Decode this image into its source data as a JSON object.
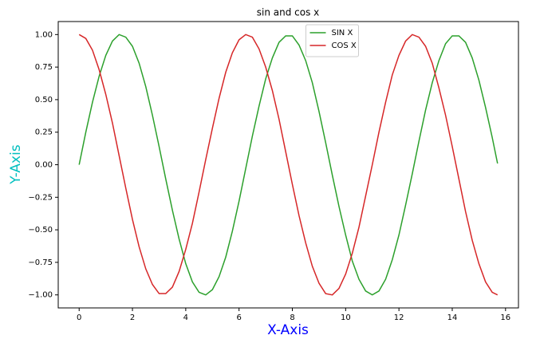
{
  "chart_data": {
    "type": "line",
    "title": "sin and cos x",
    "x_label": "X-Axis",
    "y_label": "Y-Axis",
    "x_label_color": "#0000ff",
    "y_label_color": "#00bfbf",
    "x": [
      0,
      0.25,
      0.5,
      0.75,
      1,
      1.25,
      1.5,
      1.75,
      2,
      2.25,
      2.5,
      2.75,
      3,
      3.25,
      3.5,
      3.75,
      4,
      4.25,
      4.5,
      4.75,
      5,
      5.25,
      5.5,
      5.75,
      6,
      6.25,
      6.5,
      6.75,
      7,
      7.25,
      7.5,
      7.75,
      8,
      8.25,
      8.5,
      8.75,
      9,
      9.25,
      9.5,
      9.75,
      10,
      10.25,
      10.5,
      10.75,
      11,
      11.25,
      11.5,
      11.75,
      12,
      12.25,
      12.5,
      12.75,
      13,
      13.25,
      13.5,
      13.75,
      14,
      14.25,
      14.5,
      14.75,
      15,
      15.25,
      15.5,
      15.7
    ],
    "series": [
      {
        "name": "SIN X",
        "color": "#2ca02c",
        "values": [
          0,
          0.25,
          0.48,
          0.68,
          0.84,
          0.95,
          1.0,
          0.98,
          0.91,
          0.78,
          0.6,
          0.38,
          0.14,
          -0.11,
          -0.35,
          -0.57,
          -0.76,
          -0.9,
          -0.98,
          -1.0,
          -0.96,
          -0.86,
          -0.71,
          -0.51,
          -0.28,
          -0.03,
          0.22,
          0.45,
          0.66,
          0.82,
          0.94,
          0.99,
          0.99,
          0.92,
          0.8,
          0.63,
          0.41,
          0.17,
          -0.08,
          -0.32,
          -0.54,
          -0.74,
          -0.88,
          -0.97,
          -1.0,
          -0.97,
          -0.88,
          -0.73,
          -0.54,
          -0.31,
          -0.07,
          0.18,
          0.42,
          0.63,
          0.8,
          0.93,
          0.99,
          0.99,
          0.94,
          0.82,
          0.65,
          0.44,
          0.21,
          0.01
        ]
      },
      {
        "name": "COS X",
        "color": "#d62728",
        "values": [
          1,
          0.97,
          0.88,
          0.73,
          0.54,
          0.32,
          0.07,
          -0.18,
          -0.42,
          -0.63,
          -0.8,
          -0.92,
          -0.99,
          -0.99,
          -0.94,
          -0.82,
          -0.65,
          -0.45,
          -0.21,
          0.04,
          0.28,
          0.51,
          0.71,
          0.86,
          0.96,
          1.0,
          0.98,
          0.89,
          0.75,
          0.57,
          0.35,
          0.1,
          -0.15,
          -0.39,
          -0.6,
          -0.78,
          -0.91,
          -0.99,
          -1.0,
          -0.95,
          -0.84,
          -0.68,
          -0.48,
          -0.24,
          0,
          0.25,
          0.48,
          0.69,
          0.84,
          0.95,
          1.0,
          0.98,
          0.91,
          0.78,
          0.59,
          0.38,
          0.14,
          -0.11,
          -0.36,
          -0.58,
          -0.76,
          -0.9,
          -0.98,
          -1.0
        ]
      }
    ],
    "xlim": [
      -0.785,
      16.485
    ],
    "ylim": [
      -1.1,
      1.1
    ],
    "xticks": [
      0,
      2,
      4,
      6,
      8,
      10,
      12,
      14,
      16
    ],
    "yticks": [
      {
        "value": -1,
        "label": "−1.00"
      },
      {
        "value": -0.75,
        "label": "−0.75"
      },
      {
        "value": -0.5,
        "label": "−0.50"
      },
      {
        "value": -0.25,
        "label": "−0.25"
      },
      {
        "value": 0,
        "label": "0.00"
      },
      {
        "value": 0.25,
        "label": "0.25"
      },
      {
        "value": 0.5,
        "label": "0.50"
      },
      {
        "value": 0.75,
        "label": "0.75"
      },
      {
        "value": 1,
        "label": "1.00"
      }
    ],
    "legend": "upper center",
    "grid": false
  }
}
